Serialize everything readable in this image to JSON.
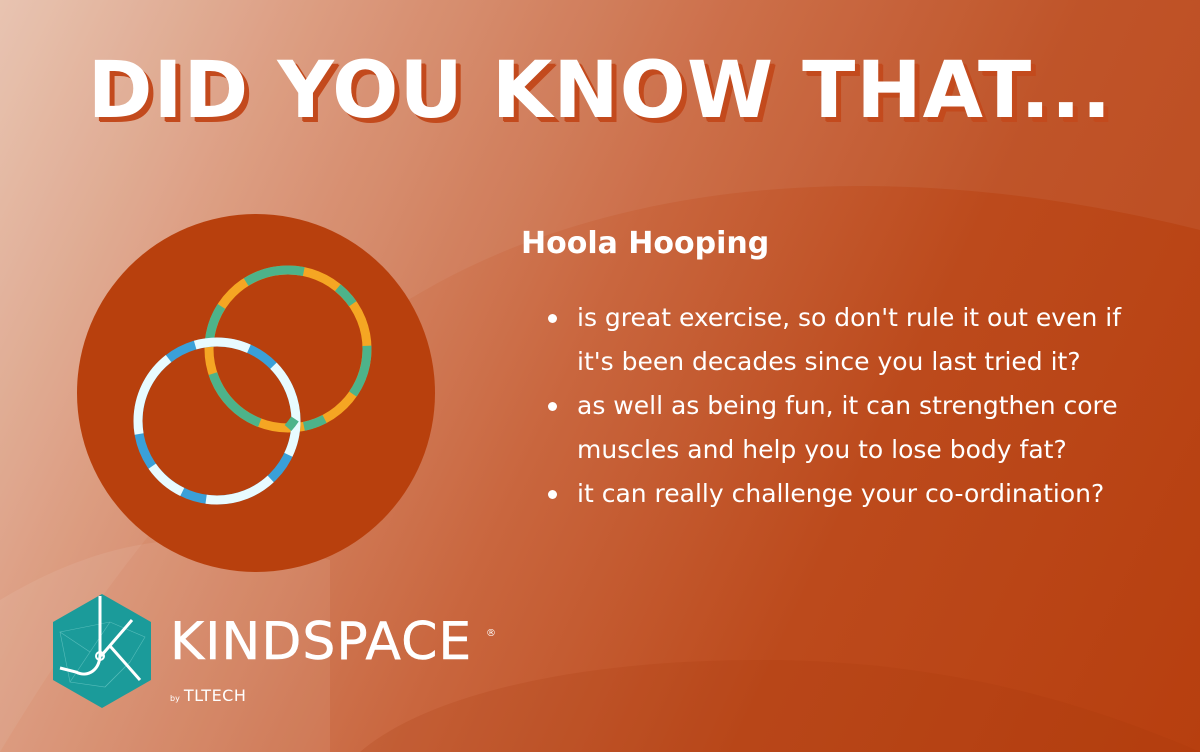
{
  "headline": "DID YOU KNOW THAT...",
  "topic": "Hoola Hooping",
  "facts": [
    "is great exercise, so don't rule it out even if it's been decades since you last tried it?",
    "as well as being fun, it can strengthen core muscles and help you to lose body fat?",
    "it can really challenge your co-ordination?"
  ],
  "brand": {
    "name": "KINDSPACE",
    "registered": "®",
    "by": "by",
    "parent": "TLTECH"
  },
  "colors": {
    "background_dark": "#b73f0f",
    "background_light": "#e7c1ad",
    "circle": "#b8400d",
    "headline_shadow": "#c34a1d",
    "hoop_green": "#4db38a",
    "hoop_orange": "#f5a623",
    "hoop_blue": "#3aa0d8",
    "hoop_white": "#e8fbff",
    "logo_teal": "#1b9b9a"
  },
  "icons": [
    "hula-hoops-icon",
    "kindspace-logo-icon"
  ]
}
